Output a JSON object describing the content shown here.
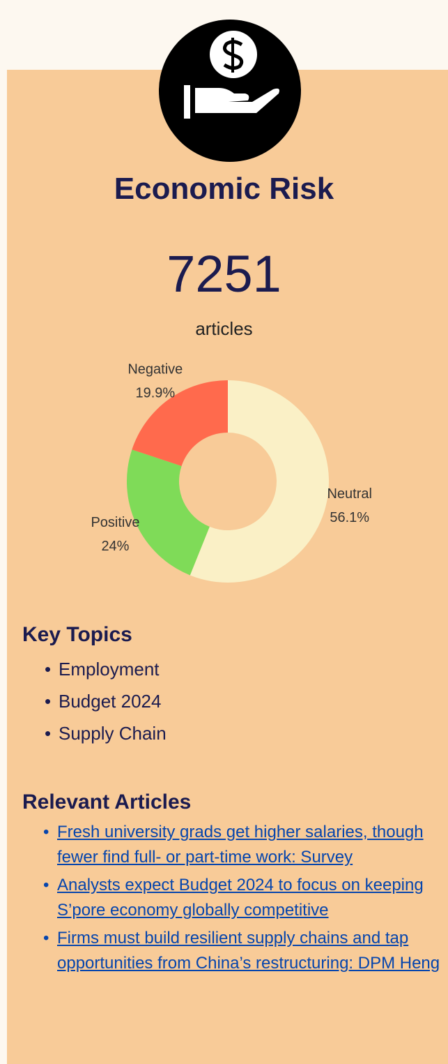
{
  "title": "Economic Risk",
  "count": "7251",
  "count_label": "articles",
  "chart_data": {
    "type": "pie",
    "donut": true,
    "categories": [
      "Neutral",
      "Positive",
      "Negative"
    ],
    "values": [
      56.1,
      24,
      19.9
    ],
    "value_labels": [
      "56.1%",
      "24%",
      "19.9%"
    ],
    "colors": [
      "#faf0c6",
      "#7fdb58",
      "#ff6a4d"
    ]
  },
  "key_topics": {
    "heading": "Key Topics",
    "items": [
      "Employment",
      "Budget 2024",
      "Supply Chain"
    ]
  },
  "articles": {
    "heading": "Relevant Articles",
    "items": [
      "Fresh university grads get higher salaries, though fewer find full- or part-time work: Survey",
      "Analysts expect Budget 2024 to focus on keeping S’pore economy globally competitive",
      "Firms must build resilient supply chains and tap opportunities from China’s restructuring: DPM Heng"
    ]
  }
}
